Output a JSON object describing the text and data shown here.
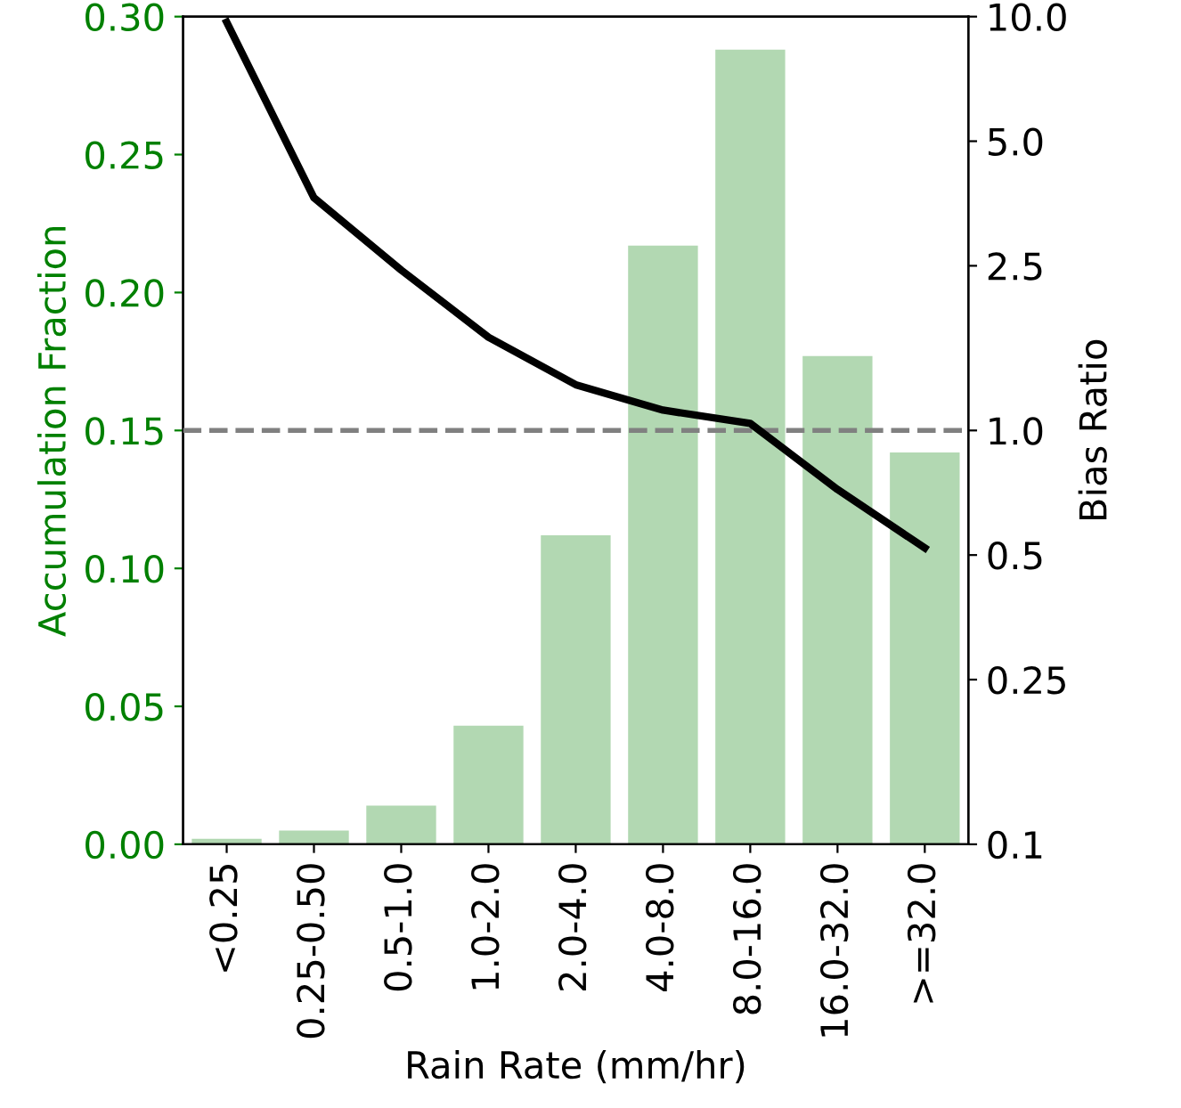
{
  "chart_data": {
    "type": "bar",
    "xlabel": "Rain Rate (mm/hr)",
    "ylabel": "Accumulation Fraction",
    "y2label": "Bias Ratio",
    "categories": [
      "<0.25",
      "0.25-0.50",
      "0.5-1.0",
      "1.0-2.0",
      "2.0-4.0",
      "4.0-8.0",
      "8.0-16.0",
      "16.0-32.0",
      ">=32.0"
    ],
    "series": [
      {
        "color": "#b2d8b2",
        "values": [
          0.002,
          0.005,
          0.014,
          0.043,
          0.112,
          0.217,
          0.288,
          0.177,
          0.142
        ]
      },
      {
        "type": "line",
        "axis": "y2",
        "color": "#000000",
        "values": [
          9.7,
          3.65,
          2.44,
          1.68,
          1.29,
          1.12,
          1.04,
          0.72,
          0.52
        ]
      }
    ],
    "ylim": [
      0,
      0.3
    ],
    "yticks": [
      {
        "value": 0,
        "label": "0.00"
      },
      {
        "value": 0.05,
        "label": "0.05"
      },
      {
        "value": 0.1,
        "label": "0.10"
      },
      {
        "value": 0.15,
        "label": "0.15"
      },
      {
        "value": 0.2,
        "label": "0.20"
      },
      {
        "value": 0.25,
        "label": "0.25"
      },
      {
        "value": 0.3,
        "label": "0.30"
      }
    ],
    "log": "y2",
    "y2lim": [
      0.1,
      10
    ],
    "y2ticks": [
      {
        "value": 0.1,
        "label": "0.1"
      },
      {
        "value": 0.25,
        "label": "0.25"
      },
      {
        "value": 0.5,
        "label": "0.5"
      },
      {
        "value": 1,
        "label": "1.0"
      },
      {
        "value": 2.5,
        "label": "2.5"
      },
      {
        "value": 5,
        "label": "5.0"
      },
      {
        "value": 10,
        "label": "10.0"
      }
    ],
    "ref_lines": [
      {
        "axis": "y2",
        "value": 1,
        "color": "#808080",
        "line_style": "dashed"
      }
    ],
    "grid": false,
    "legend": false
  }
}
